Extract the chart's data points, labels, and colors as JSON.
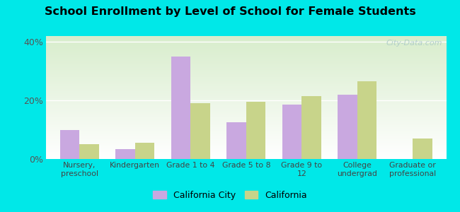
{
  "title": "School Enrollment by Level of School for Female Students",
  "categories": [
    "Nursery,\npreschool",
    "Kindergarten",
    "Grade 1 to 4",
    "Grade 5 to 8",
    "Grade 9 to\n12",
    "College\nundergrad",
    "Graduate or\nprofessional"
  ],
  "california_city": [
    10.0,
    3.5,
    35.0,
    12.5,
    18.5,
    22.0,
    0.0
  ],
  "california": [
    5.0,
    5.5,
    19.0,
    19.5,
    21.5,
    26.5,
    7.0
  ],
  "bar_color_city": "#c9a8e0",
  "bar_color_state": "#c8d48a",
  "background_color": "#00e8e8",
  "ylim": [
    0,
    42
  ],
  "yticks": [
    0,
    20,
    40
  ],
  "ytick_labels": [
    "0%",
    "20%",
    "40%"
  ],
  "legend_city": "California City",
  "legend_state": "California",
  "watermark": "City-Data.com"
}
